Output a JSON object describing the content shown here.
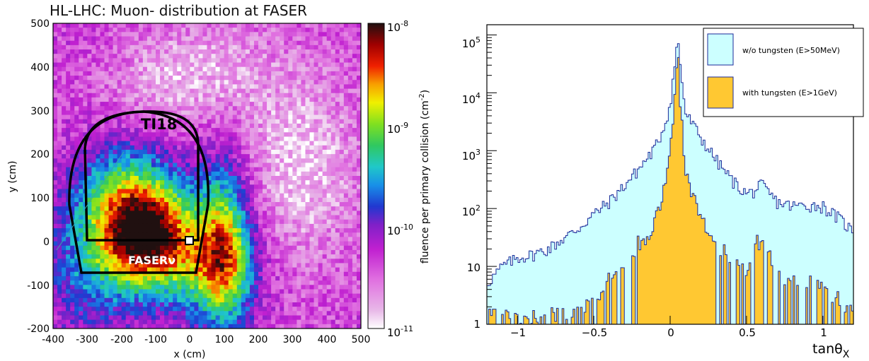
{
  "chart_data": [
    {
      "type": "heatmap",
      "title": "HL-LHC: Muon- distribution at FASER",
      "xlabel": "x (cm)",
      "ylabel": "y (cm)",
      "xlim": [
        -400,
        500
      ],
      "ylim": [
        -200,
        500
      ],
      "x_ticks": [
        "-400",
        "-300",
        "-200",
        "-100",
        "0",
        "100",
        "200",
        "300",
        "400",
        "500"
      ],
      "y_ticks": [
        "500",
        "400",
        "300",
        "200",
        "100",
        "0",
        "-100",
        "-200"
      ],
      "colorbar": {
        "label": "fluence per primary collision (cm",
        "label_sup": "-2",
        "label_end": ")",
        "range": [
          "1e-11",
          "1e-8"
        ],
        "scale": "log",
        "tick_base": "10",
        "tick_exponents": [
          "-8",
          "-9",
          "-10",
          "-11"
        ]
      },
      "annotations": [
        {
          "text": "TI18"
        },
        {
          "text": "FASERν"
        }
      ]
    },
    {
      "type": "area",
      "xlabel_main": "tanθ",
      "xlabel_sub": "X",
      "xlim": [
        -1.2,
        1.2
      ],
      "ylim": [
        1,
        150000
      ],
      "y_scale": "log",
      "x_ticks": [
        "−1",
        "−0.5",
        "0",
        "0.5",
        "1"
      ],
      "y_ticks": [
        {
          "base": "10",
          "exp": "5"
        },
        {
          "base": "10",
          "exp": "4"
        },
        {
          "base": "10",
          "exp": "3"
        },
        {
          "base": "10",
          "exp": "2"
        },
        {
          "base": "10",
          "exp": ""
        },
        {
          "base": "1",
          "exp": ""
        }
      ],
      "legend_position": "top-right",
      "series": [
        {
          "name": "w/o tungsten (E>50MeV)",
          "fill": "#ccffff",
          "line": "#1a2a9a",
          "x": [
            -1.2,
            -1.1,
            -1.0,
            -0.9,
            -0.8,
            -0.7,
            -0.6,
            -0.5,
            -0.4,
            -0.3,
            -0.2,
            -0.1,
            -0.05,
            0,
            0.03,
            0.05,
            0.07,
            0.1,
            0.15,
            0.2,
            0.3,
            0.4,
            0.5,
            0.55,
            0.6,
            0.65,
            0.7,
            0.8,
            0.9,
            1.0,
            1.1,
            1.2
          ],
          "values": [
            5,
            10,
            14,
            16,
            20,
            30,
            45,
            80,
            130,
            250,
            500,
            1100,
            2200,
            6000,
            30000,
            85000,
            25000,
            4500,
            2800,
            1700,
            700,
            320,
            180,
            200,
            260,
            180,
            130,
            110,
            115,
            110,
            70,
            40
          ]
        },
        {
          "name": "with tungsten (E>1GeV)",
          "fill": "#ffc832",
          "line": "#1a2a9a",
          "x": [
            -1.2,
            -0.8,
            -0.7,
            -0.6,
            -0.5,
            -0.4,
            -0.3,
            -0.2,
            -0.1,
            -0.05,
            0,
            0.03,
            0.05,
            0.07,
            0.1,
            0.15,
            0.2,
            0.3,
            0.4,
            0.5,
            0.55,
            0.6,
            0.65,
            0.7,
            0.8,
            0.9,
            1.0,
            1.1,
            1.2
          ],
          "values": [
            1,
            1,
            1,
            1,
            2,
            4,
            8,
            20,
            60,
            150,
            900,
            8000,
            52000,
            5000,
            500,
            160,
            70,
            20,
            8,
            5,
            14,
            28,
            10,
            5,
            4,
            4,
            3,
            2,
            1
          ]
        }
      ]
    }
  ]
}
